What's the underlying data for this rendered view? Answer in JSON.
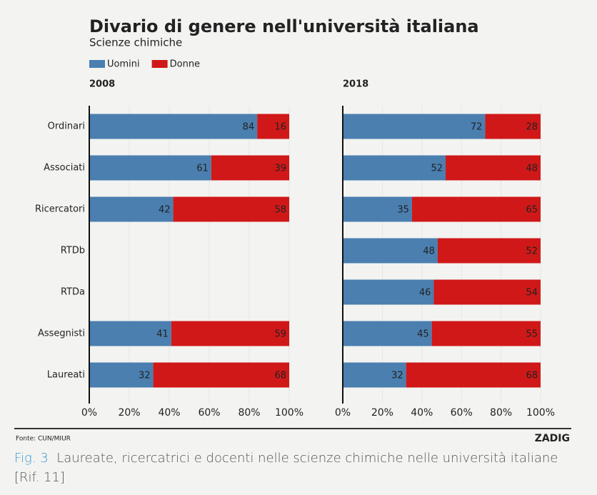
{
  "header": {
    "title": "Divario di genere nell'università italiana",
    "subtitle": "Scienze chimiche"
  },
  "chart_data": [
    {
      "type": "bar",
      "orientation": "horizontal",
      "stacked": true,
      "title": "2008",
      "categories": [
        "Ordinari",
        "Associati",
        "Ricercatori",
        "RTDb",
        "RTDa",
        "Assegnisti",
        "Laureati"
      ],
      "series": [
        {
          "name": "Uomini",
          "color": "#4a7fb0",
          "values": [
            84,
            61,
            42,
            null,
            null,
            41,
            32
          ]
        },
        {
          "name": "Donne",
          "color": "#d01818",
          "values": [
            16,
            39,
            58,
            null,
            null,
            59,
            68
          ]
        }
      ],
      "xlim": [
        0,
        100
      ],
      "xticks": [
        {
          "value": 0,
          "label": "0%"
        },
        {
          "value": 20,
          "label": "20%"
        },
        {
          "value": 40,
          "label": "40%"
        },
        {
          "value": 60,
          "label": "60%"
        },
        {
          "value": 80,
          "label": "80%"
        },
        {
          "value": 100,
          "label": "100%"
        }
      ],
      "grid": true
    },
    {
      "type": "bar",
      "orientation": "horizontal",
      "stacked": true,
      "title": "2018",
      "series": [
        {
          "name": "Uomini",
          "color": "#4a7fb0",
          "values": [
            72,
            52,
            35,
            48,
            46,
            45,
            32
          ]
        },
        {
          "name": "Donne",
          "color": "#d01818",
          "values": [
            28,
            48,
            65,
            52,
            54,
            55,
            68
          ]
        }
      ],
      "xlim": [
        0,
        100
      ],
      "xticks": [
        {
          "value": 0,
          "label": "0%"
        },
        {
          "value": 20,
          "label": "20%"
        },
        {
          "value": 40,
          "label": "40%"
        },
        {
          "value": 60,
          "label": "60%"
        },
        {
          "value": 80,
          "label": "80%"
        },
        {
          "value": 100,
          "label": "100%"
        }
      ],
      "grid": true
    }
  ],
  "footer": {
    "source": "Fonte: CUN/MIUR",
    "brand": "ZADIG"
  },
  "caption": {
    "label": "Fig. 3",
    "text": "Laureate, ricercatrici e docenti nelle scienze chimiche nelle università italiane [Rif. 11]"
  }
}
